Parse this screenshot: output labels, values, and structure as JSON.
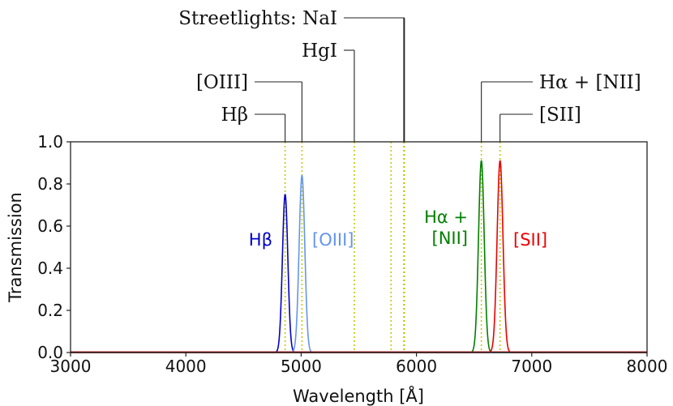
{
  "chart_data": {
    "type": "line",
    "xlabel": "Wavelength [Å]",
    "ylabel": "Transmission",
    "xlim": [
      3000,
      8000
    ],
    "ylim": [
      0.0,
      1.0
    ],
    "x_ticks": [
      "3000",
      "4000",
      "5000",
      "6000",
      "7000",
      "8000"
    ],
    "y_ticks": [
      "0.0",
      "0.2",
      "0.4",
      "0.6",
      "0.8",
      "1.0"
    ],
    "grid": false,
    "series": [
      {
        "name": "Hβ",
        "label_lines": [
          "Hβ"
        ],
        "color": "#0000cc",
        "center": 4861,
        "peak": 0.75,
        "fwhm": 55
      },
      {
        "name": "[OIII]",
        "label_lines": [
          "[OIII]"
        ],
        "color": "#6495ed",
        "center": 5007,
        "peak": 0.84,
        "fwhm": 58
      },
      {
        "name": "Hα + [NII]",
        "label_lines": [
          "Hα +",
          "[NII]"
        ],
        "color": "#008000",
        "center": 6563,
        "peak": 0.91,
        "fwhm": 58
      },
      {
        "name": "[SII]",
        "label_lines": [
          "[SII]"
        ],
        "color": "#ee0000",
        "center": 6725,
        "peak": 0.91,
        "fwhm": 60
      }
    ],
    "reference_lines": [
      {
        "wavelength": 4861,
        "label": "Hβ"
      },
      {
        "wavelength": 5007,
        "label": "[OIII]"
      },
      {
        "wavelength": 5461,
        "label": "HgI"
      },
      {
        "wavelength": 5780,
        "label": "Streetlights: NaI"
      },
      {
        "wavelength": 5890,
        "label": "Streetlights: NaI"
      },
      {
        "wavelength": 5896,
        "label": "Streetlights: NaI"
      },
      {
        "wavelength": 6563,
        "label": "Hα + [NII]"
      },
      {
        "wavelength": 6725,
        "label": "[SII]"
      }
    ],
    "callouts": [
      {
        "label": "Streetlights: NaI",
        "wavelengths": [
          5890,
          5896
        ]
      },
      {
        "label": "HgI",
        "wavelengths": [
          5461
        ]
      },
      {
        "label": "[OIII]",
        "wavelengths": [
          5007
        ]
      },
      {
        "label": "Hβ",
        "wavelengths": [
          4861
        ]
      },
      {
        "label": "Hα + [NII]",
        "wavelengths": [
          6563
        ]
      },
      {
        "label": "[SII]",
        "wavelengths": [
          6725
        ]
      }
    ],
    "colors": {
      "reference_line": "#c8c800",
      "axis": "#222222",
      "baseline": "#b22222"
    }
  }
}
